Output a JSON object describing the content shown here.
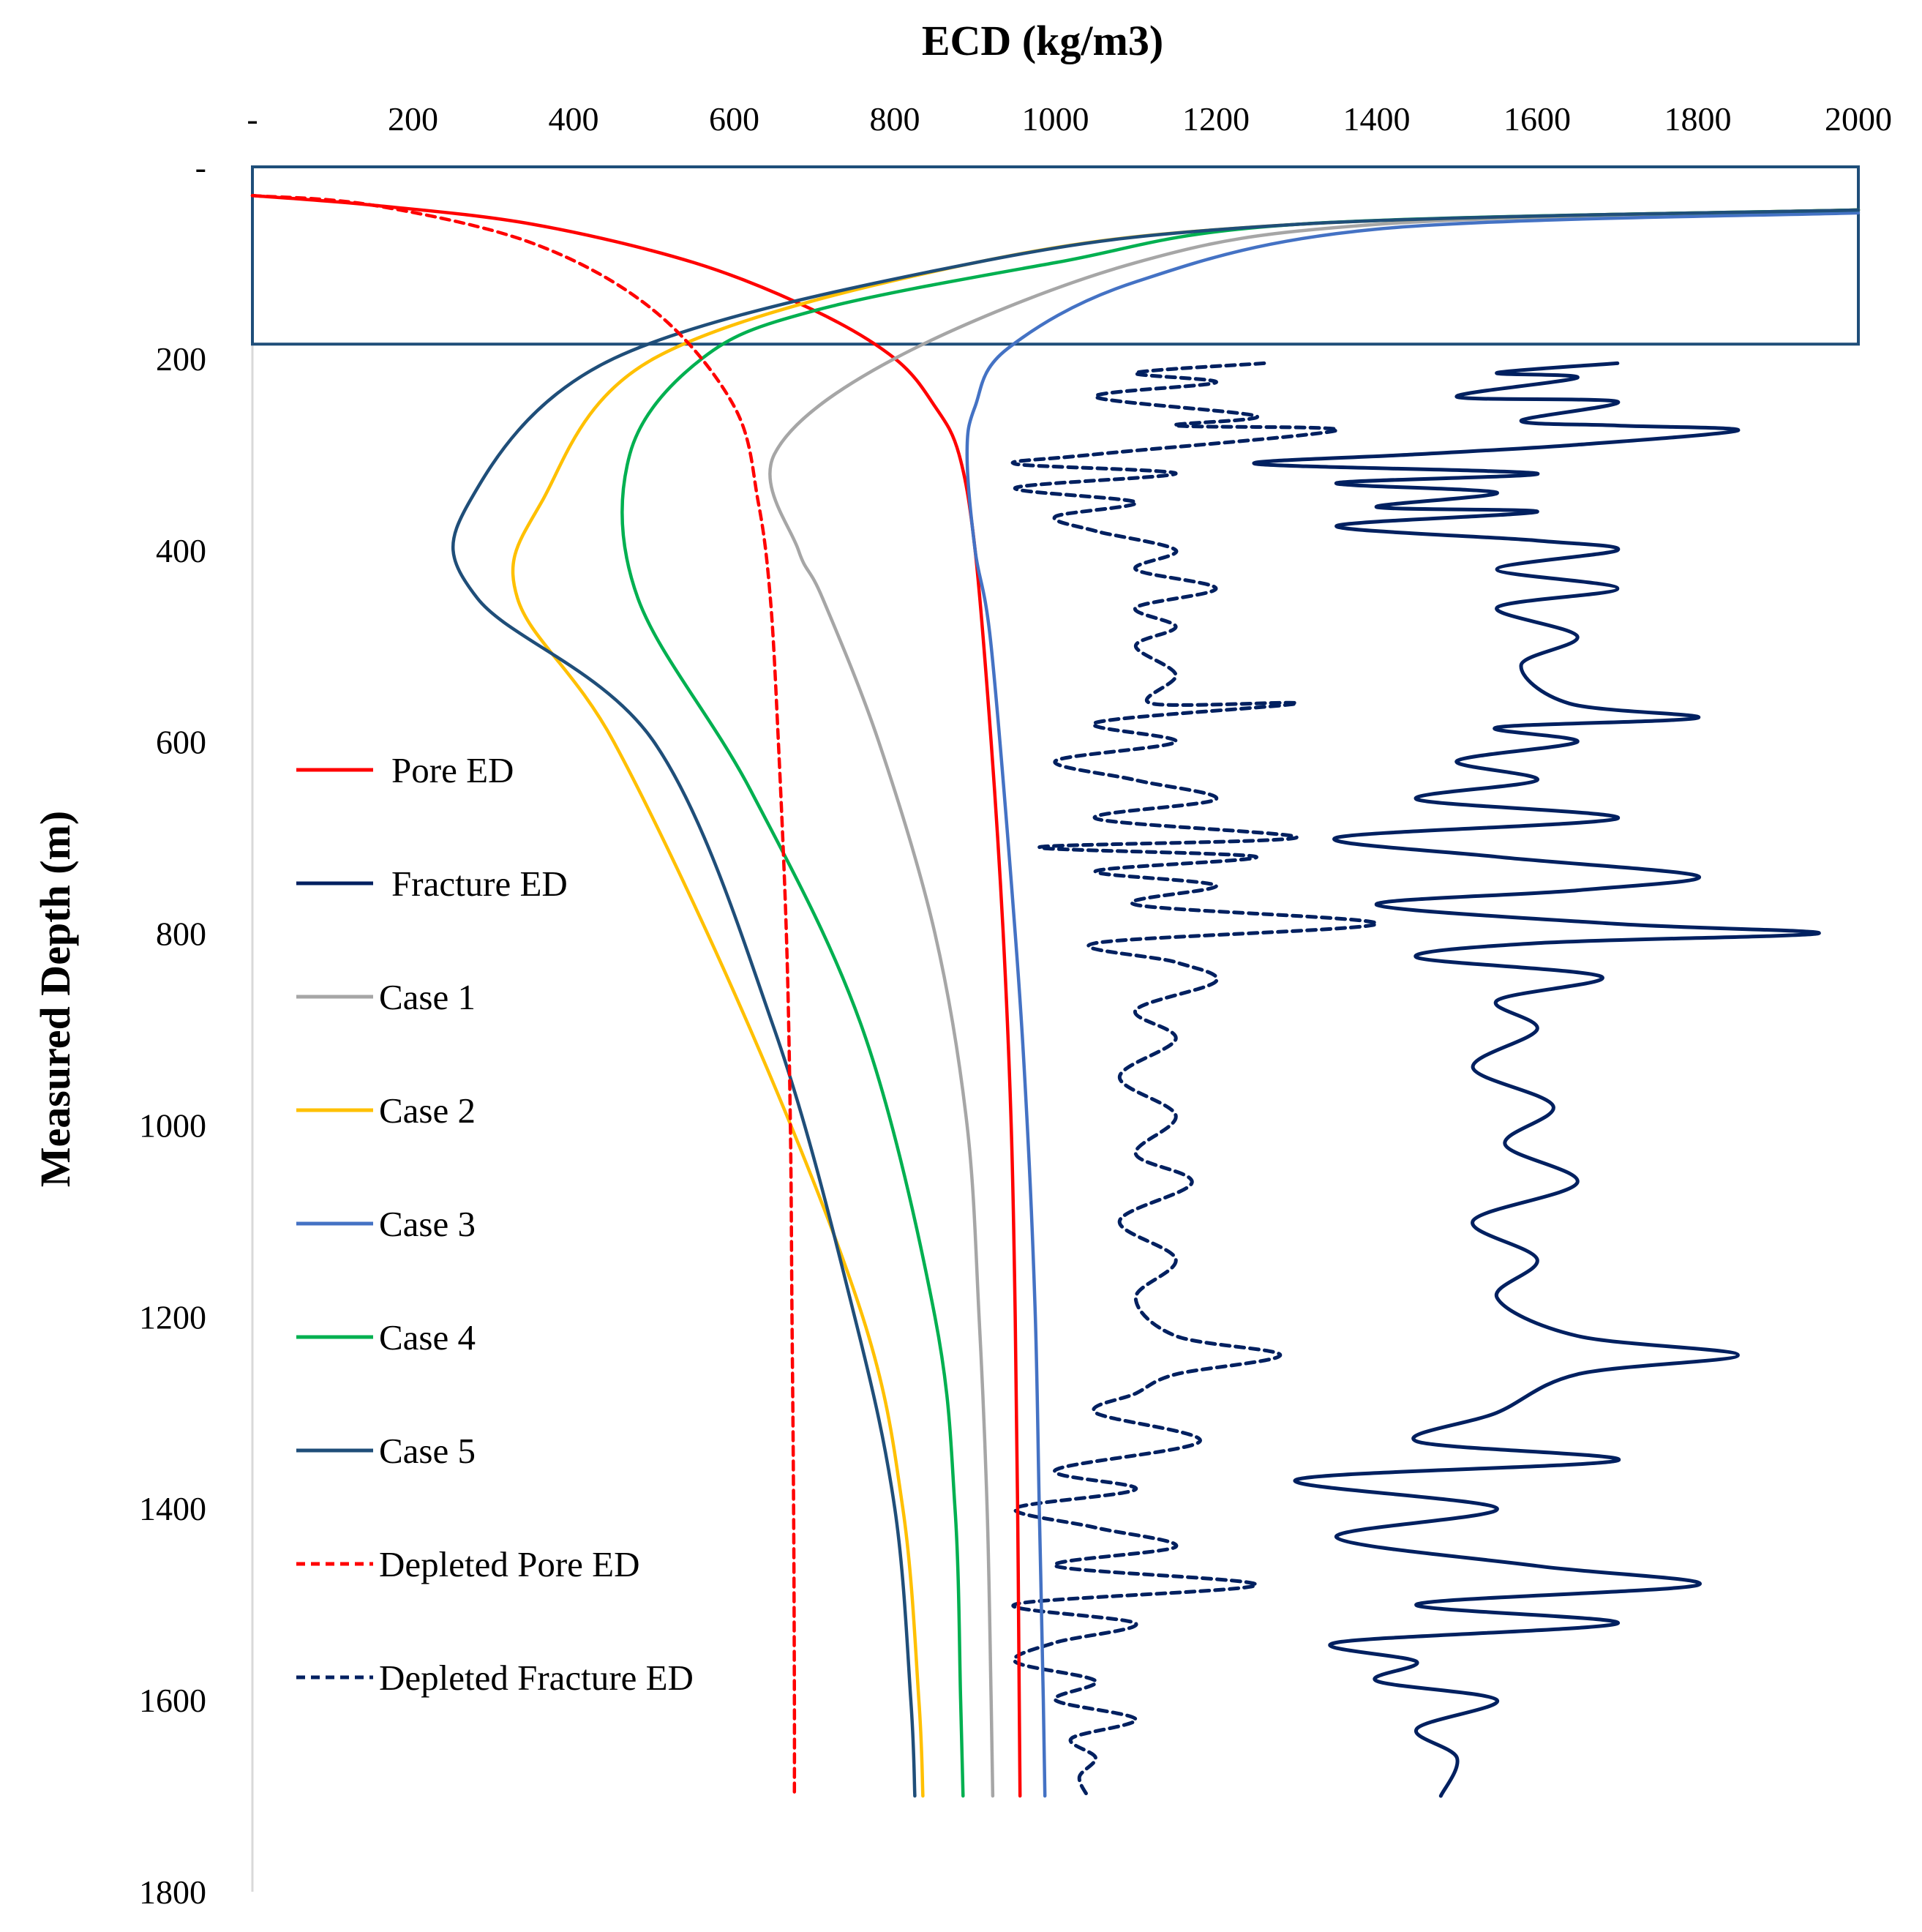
{
  "chart_data": {
    "type": "line",
    "title": "ECD (kg/m3)",
    "xlabel": "ECD (kg/m3)",
    "ylabel": "Measured Depth (m)",
    "x_axis_position": "top",
    "y_axis_inverted": true,
    "xlim": [
      0,
      2000
    ],
    "ylim": [
      0,
      1800
    ],
    "x_tick_labels": [
      "-",
      "200",
      "400",
      "600",
      "800",
      "1000",
      "1200",
      "1400",
      "1600",
      "1800",
      "2000"
    ],
    "y_tick_labels": [
      "-",
      "200",
      "400",
      "600",
      "800",
      "1000",
      "1200",
      "1400",
      "1600",
      "1800"
    ],
    "legend_position": "left",
    "series": [
      {
        "name": "Pore ED",
        "color": "#FF0000",
        "dash": "solid",
        "kind": "curve",
        "points": [
          [
            0,
            30
          ],
          [
            150,
            40
          ],
          [
            350,
            60
          ],
          [
            550,
            100
          ],
          [
            700,
            150
          ],
          [
            800,
            200
          ],
          [
            850,
            250
          ],
          [
            880,
            300
          ],
          [
            900,
            400
          ],
          [
            920,
            600
          ],
          [
            935,
            800
          ],
          [
            945,
            1000
          ],
          [
            950,
            1200
          ],
          [
            953,
            1400
          ],
          [
            955,
            1600
          ],
          [
            956,
            1700
          ]
        ]
      },
      {
        "name": "Fracture ED",
        "color": "#002060",
        "dash": "solid",
        "kind": "log",
        "points": [
          [
            1700,
            205
          ],
          [
            1550,
            215
          ],
          [
            1650,
            220
          ],
          [
            1500,
            240
          ],
          [
            1700,
            245
          ],
          [
            1580,
            265
          ],
          [
            1700,
            270
          ],
          [
            1850,
            275
          ],
          [
            1650,
            290
          ],
          [
            1450,
            300
          ],
          [
            1250,
            310
          ],
          [
            1600,
            320
          ],
          [
            1350,
            330
          ],
          [
            1550,
            340
          ],
          [
            1400,
            355
          ],
          [
            1600,
            360
          ],
          [
            1350,
            375
          ],
          [
            1600,
            390
          ],
          [
            1700,
            400
          ],
          [
            1550,
            420
          ],
          [
            1700,
            440
          ],
          [
            1550,
            460
          ],
          [
            1650,
            490
          ],
          [
            1580,
            520
          ],
          [
            1640,
            560
          ],
          [
            1800,
            575
          ],
          [
            1550,
            585
          ],
          [
            1650,
            600
          ],
          [
            1500,
            620
          ],
          [
            1600,
            640
          ],
          [
            1450,
            660
          ],
          [
            1700,
            680
          ],
          [
            1350,
            700
          ],
          [
            1550,
            720
          ],
          [
            1800,
            740
          ],
          [
            1650,
            755
          ],
          [
            1400,
            770
          ],
          [
            1700,
            790
          ],
          [
            1950,
            800
          ],
          [
            1600,
            810
          ],
          [
            1450,
            825
          ],
          [
            1680,
            845
          ],
          [
            1550,
            870
          ],
          [
            1600,
            900
          ],
          [
            1520,
            940
          ],
          [
            1620,
            980
          ],
          [
            1560,
            1020
          ],
          [
            1650,
            1060
          ],
          [
            1520,
            1100
          ],
          [
            1600,
            1140
          ],
          [
            1550,
            1180
          ],
          [
            1650,
            1220
          ],
          [
            1850,
            1240
          ],
          [
            1650,
            1260
          ],
          [
            1550,
            1300
          ],
          [
            1450,
            1330
          ],
          [
            1700,
            1350
          ],
          [
            1300,
            1370
          ],
          [
            1550,
            1400
          ],
          [
            1350,
            1430
          ],
          [
            1600,
            1460
          ],
          [
            1800,
            1480
          ],
          [
            1450,
            1500
          ],
          [
            1700,
            1520
          ],
          [
            1350,
            1540
          ],
          [
            1450,
            1560
          ],
          [
            1400,
            1580
          ],
          [
            1550,
            1600
          ],
          [
            1450,
            1630
          ],
          [
            1500,
            1660
          ],
          [
            1480,
            1700
          ]
        ]
      },
      {
        "name": "Case 1",
        "color": "#A6A6A6",
        "dash": "solid",
        "kind": "curve",
        "points": [
          [
            2000,
            45
          ],
          [
            1400,
            60
          ],
          [
            1100,
            100
          ],
          [
            800,
            200
          ],
          [
            650,
            300
          ],
          [
            680,
            400
          ],
          [
            710,
            450
          ],
          [
            780,
            600
          ],
          [
            850,
            800
          ],
          [
            890,
            1000
          ],
          [
            905,
            1200
          ],
          [
            915,
            1400
          ],
          [
            920,
            1600
          ],
          [
            922,
            1700
          ]
        ]
      },
      {
        "name": "Case 2",
        "color": "#FFC000",
        "dash": "solid",
        "kind": "curve",
        "points": [
          [
            2000,
            45
          ],
          [
            1300,
            60
          ],
          [
            900,
            100
          ],
          [
            500,
            200
          ],
          [
            360,
            350
          ],
          [
            330,
            450
          ],
          [
            450,
            600
          ],
          [
            620,
            900
          ],
          [
            760,
            1200
          ],
          [
            810,
            1400
          ],
          [
            830,
            1600
          ],
          [
            835,
            1700
          ]
        ]
      },
      {
        "name": "Case 3",
        "color": "#4472C4",
        "dash": "solid",
        "kind": "curve",
        "points": [
          [
            2000,
            48
          ],
          [
            1400,
            65
          ],
          [
            1100,
            120
          ],
          [
            940,
            190
          ],
          [
            900,
            250
          ],
          [
            890,
            300
          ],
          [
            900,
            400
          ],
          [
            920,
            500
          ],
          [
            950,
            800
          ],
          [
            965,
            1000
          ],
          [
            975,
            1200
          ],
          [
            980,
            1400
          ],
          [
            985,
            1600
          ],
          [
            987,
            1700
          ]
        ]
      },
      {
        "name": "Case 4",
        "color": "#00B050",
        "dash": "solid",
        "kind": "curve",
        "points": [
          [
            2000,
            45
          ],
          [
            1300,
            60
          ],
          [
            1000,
            100
          ],
          [
            700,
            150
          ],
          [
            560,
            200
          ],
          [
            470,
            300
          ],
          [
            480,
            450
          ],
          [
            620,
            650
          ],
          [
            760,
            900
          ],
          [
            850,
            1200
          ],
          [
            875,
            1400
          ],
          [
            882,
            1600
          ],
          [
            885,
            1700
          ]
        ]
      },
      {
        "name": "Case 5",
        "color": "#1F4E79",
        "dash": "solid",
        "kind": "curve",
        "points": [
          [
            2000,
            45
          ],
          [
            1300,
            60
          ],
          [
            900,
            100
          ],
          [
            450,
            200
          ],
          [
            270,
            350
          ],
          [
            280,
            450
          ],
          [
            500,
            600
          ],
          [
            650,
            900
          ],
          [
            750,
            1200
          ],
          [
            800,
            1400
          ],
          [
            820,
            1600
          ],
          [
            825,
            1700
          ]
        ]
      },
      {
        "name": "Depleted Pore ED",
        "color": "#FF0000",
        "dash": "dashed",
        "kind": "curve",
        "points": [
          [
            0,
            30
          ],
          [
            150,
            40
          ],
          [
            350,
            80
          ],
          [
            500,
            150
          ],
          [
            600,
            250
          ],
          [
            630,
            350
          ],
          [
            645,
            450
          ],
          [
            655,
            600
          ],
          [
            665,
            800
          ],
          [
            670,
            1000
          ],
          [
            672,
            1200
          ],
          [
            674,
            1400
          ],
          [
            675,
            1600
          ],
          [
            675,
            1700
          ]
        ]
      },
      {
        "name": "Depleted Fracture ED",
        "color": "#002060",
        "dash": "dashed",
        "kind": "log",
        "points": [
          [
            1260,
            205
          ],
          [
            1100,
            215
          ],
          [
            1200,
            225
          ],
          [
            1050,
            240
          ],
          [
            1250,
            260
          ],
          [
            1150,
            270
          ],
          [
            1350,
            275
          ],
          [
            1050,
            300
          ],
          [
            950,
            310
          ],
          [
            1150,
            320
          ],
          [
            950,
            335
          ],
          [
            1100,
            350
          ],
          [
            1000,
            365
          ],
          [
            1050,
            380
          ],
          [
            1150,
            400
          ],
          [
            1100,
            420
          ],
          [
            1200,
            440
          ],
          [
            1100,
            460
          ],
          [
            1150,
            480
          ],
          [
            1100,
            500
          ],
          [
            1150,
            530
          ],
          [
            1120,
            560
          ],
          [
            1300,
            560
          ],
          [
            1050,
            580
          ],
          [
            1150,
            600
          ],
          [
            1000,
            620
          ],
          [
            1100,
            640
          ],
          [
            1200,
            660
          ],
          [
            1050,
            680
          ],
          [
            1300,
            700
          ],
          [
            980,
            710
          ],
          [
            1250,
            720
          ],
          [
            1050,
            735
          ],
          [
            1200,
            750
          ],
          [
            1100,
            770
          ],
          [
            1400,
            790
          ],
          [
            1050,
            810
          ],
          [
            1150,
            830
          ],
          [
            1200,
            850
          ],
          [
            1100,
            880
          ],
          [
            1150,
            910
          ],
          [
            1080,
            950
          ],
          [
            1150,
            990
          ],
          [
            1100,
            1030
          ],
          [
            1170,
            1060
          ],
          [
            1080,
            1100
          ],
          [
            1150,
            1140
          ],
          [
            1100,
            1180
          ],
          [
            1150,
            1220
          ],
          [
            1280,
            1240
          ],
          [
            1150,
            1260
          ],
          [
            1100,
            1280
          ],
          [
            1050,
            1300
          ],
          [
            1180,
            1330
          ],
          [
            1000,
            1360
          ],
          [
            1100,
            1380
          ],
          [
            950,
            1400
          ],
          [
            1050,
            1420
          ],
          [
            1150,
            1440
          ],
          [
            1000,
            1460
          ],
          [
            1250,
            1480
          ],
          [
            950,
            1500
          ],
          [
            1100,
            1520
          ],
          [
            1000,
            1540
          ],
          [
            950,
            1560
          ],
          [
            1050,
            1580
          ],
          [
            1000,
            1600
          ],
          [
            1100,
            1620
          ],
          [
            1020,
            1640
          ],
          [
            1050,
            1660
          ],
          [
            1030,
            1680
          ],
          [
            1040,
            1700
          ]
        ]
      }
    ],
    "upper_box": {
      "x_start": 0,
      "x_end": 2000,
      "depth_top": 0,
      "depth_bottom": 185,
      "color": "#1F4E79"
    }
  }
}
